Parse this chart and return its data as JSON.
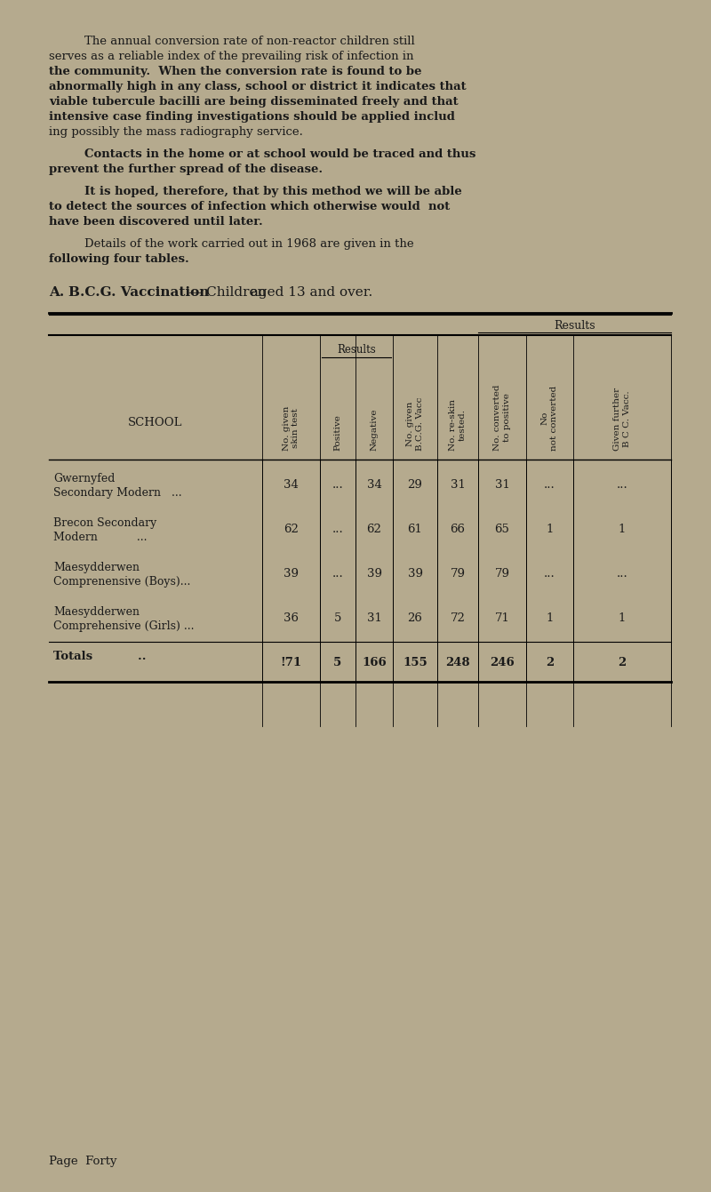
{
  "bg_color": "#b5aa8e",
  "text_color": "#1a1a1a",
  "page_bg": "#c8bc9a",
  "paragraph1": "The annual conversion rate of non-reactor children still serves as a reliable index of the prevailing risk of infection in the community.  When the conversion rate is found to be abnormally high in any class, school or district it indicates that viable tubercule bacilli are being disseminated freely and that intensive case finding investigations should be applied includ ing possibly the mass radiography service.",
  "paragraph2": "Contacts in the home or at school would be traced and thus prevent the further spread of the disease.",
  "paragraph3": "It is hoped, therefore, that by this method we will be able to detect the sources of infection which otherwise would not have been discovered until later.",
  "paragraph4": "Details of the work carried out in 1968 are given in the following four tables.",
  "section_heading": "B.C.G. Vaccination— Children aged 13 and over.",
  "section_label": "A.",
  "col_headers": [
    "No. given\nskin test",
    "Positive",
    "Negative",
    "No. given\nB.C.G. Vacc",
    "No. re-skin\ntested.",
    "No. converted\nto positive",
    "No\nnot converted",
    "Given further\nB C C. Vacc."
  ],
  "sub_header": "Results",
  "school_col_header": "SCHOOL",
  "rows": [
    {
      "name": "Gwernyfed\nSecondary Modern   ...",
      "data": [
        "34",
        "...",
        "34",
        "29",
        "31",
        "31",
        "...",
        "..."
      ]
    },
    {
      "name": "Brecon Secondary\nModern           ...",
      "data": [
        "62",
        "...",
        "62",
        "61",
        "66",
        "65",
        "1",
        "1"
      ]
    },
    {
      "name": "Maesydderwen\nComprenensive (Boys)...",
      "data": [
        "39",
        "...",
        "39",
        "39",
        "79",
        "79",
        "...",
        "..."
      ]
    },
    {
      "name": "Maesydderwen\nComprehensive (Girls) ...",
      "data": [
        "36",
        "5",
        "31",
        "26",
        "72",
        "71",
        "1",
        "1"
      ]
    }
  ],
  "totals_row": {
    "name": "Totals           ..",
    "data": [
      "!71",
      "5",
      "166",
      "155",
      "248",
      "246",
      "2",
      "2"
    ]
  },
  "footer": "Page  Forty"
}
